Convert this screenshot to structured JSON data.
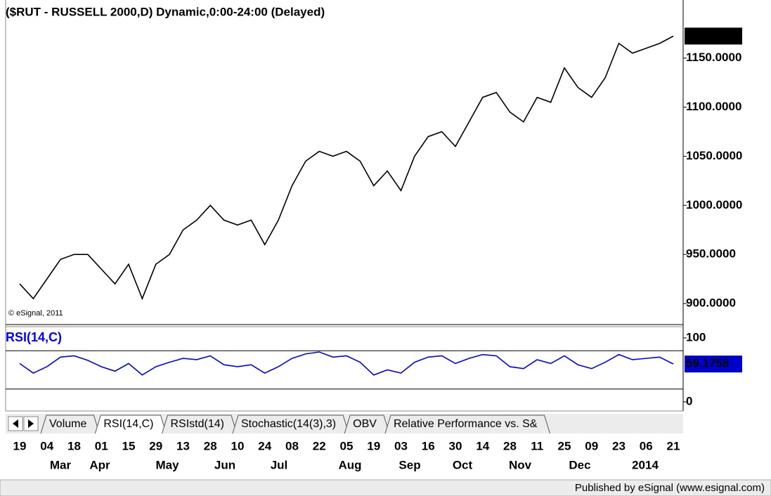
{
  "chart_data": {
    "type": "line",
    "title": "($RUT - RUSSELL 2000,D) Dynamic,0:00-24:00 (Delayed)",
    "copyright": "© eSignal, 2011",
    "categories": [
      "19",
      null,
      "04",
      null,
      "18",
      null,
      "01",
      null,
      "15",
      null,
      "29",
      null,
      "13",
      null,
      "28",
      null,
      "10",
      null,
      "24",
      null,
      "08",
      null,
      "22",
      null,
      "05",
      null,
      "19",
      null,
      "03",
      null,
      "16",
      null,
      "30",
      null,
      "14",
      null,
      "28",
      null,
      "11",
      null,
      "25",
      null,
      "09",
      null,
      "23",
      null,
      "06",
      null,
      "21"
    ],
    "months": [
      "Mar",
      "Apr",
      "May",
      "Jun",
      "Jul",
      "Aug",
      "Sep",
      "Oct",
      "Nov",
      "Dec",
      "2014"
    ],
    "series": [
      {
        "name": "$RUT",
        "color": "#000000",
        "values": [
          920,
          905,
          925,
          945,
          950,
          950,
          935,
          920,
          940,
          905,
          940,
          950,
          975,
          985,
          1000,
          985,
          980,
          985,
          960,
          985,
          1020,
          1045,
          1055,
          1050,
          1055,
          1045,
          1020,
          1035,
          1015,
          1050,
          1070,
          1075,
          1060,
          1085,
          1110,
          1115,
          1095,
          1085,
          1110,
          1105,
          1140,
          1120,
          1110,
          1130,
          1165,
          1155,
          1160,
          1165,
          1172.3957
        ],
        "last_label": "1172.3957"
      }
    ],
    "ylim": [
      880,
      1202
    ],
    "yticks": [
      {
        "value": 900,
        "label": "900.0000"
      },
      {
        "value": 950,
        "label": "950.0000"
      },
      {
        "value": 1000,
        "label": "1000.0000"
      },
      {
        "value": 1050,
        "label": "1050.0000"
      },
      {
        "value": 1100,
        "label": "1100.0000"
      },
      {
        "value": 1150,
        "label": "1150.0000"
      }
    ],
    "indicator": {
      "name": "RSI(14,C)",
      "color": "#0000ff",
      "values": [
        60,
        45,
        55,
        70,
        72,
        65,
        55,
        48,
        60,
        42,
        55,
        62,
        68,
        66,
        72,
        58,
        55,
        58,
        45,
        55,
        68,
        75,
        78,
        70,
        72,
        62,
        42,
        50,
        45,
        62,
        70,
        72,
        60,
        68,
        74,
        72,
        55,
        52,
        66,
        60,
        72,
        58,
        52,
        62,
        74,
        66,
        68,
        70,
        59.1758
      ],
      "last_label": "59.1758",
      "ylim": [
        0,
        100
      ],
      "yticks": [
        0,
        100
      ],
      "levels": [
        80,
        20
      ]
    },
    "tabs": [
      "Volume",
      "RSI(14,C)",
      "RSIstd(14)",
      "Stochastic(14(3),3)",
      "OBV",
      "Relative Performance vs. S&"
    ],
    "footer": "Published by eSignal (www.esignal.com)"
  }
}
